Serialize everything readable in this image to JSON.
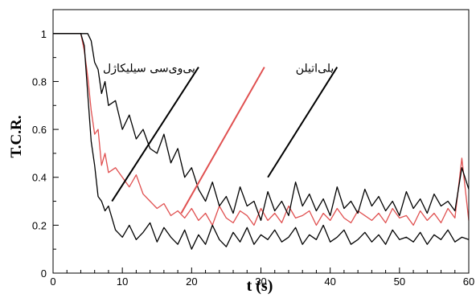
{
  "chart_data": {
    "type": "line",
    "xlabel": "t (s)",
    "ylabel": "T.C.R.",
    "xlim": [
      0,
      60
    ],
    "ylim": [
      0,
      1.1
    ],
    "x_ticks": [
      0,
      10,
      20,
      30,
      40,
      50,
      60
    ],
    "y_ticks": [
      0,
      0.2,
      0.4,
      0.6,
      0.8,
      1
    ],
    "y_tick_labels": [
      "0",
      "0.2",
      "0.4",
      "0.6",
      "0.8",
      "1"
    ],
    "grid": false,
    "annotations": [
      {
        "text": "پی‌وی‌سی سیلیکاژل",
        "color": "#000000",
        "line_start": [
          8.5,
          0.3
        ],
        "line_end": [
          21,
          0.86
        ]
      },
      {
        "text": "",
        "color": "#e05050",
        "line_start": [
          18.5,
          0.25
        ],
        "line_end": [
          30.5,
          0.86
        ]
      },
      {
        "text": "پلی‌اتیلن",
        "color": "#000000",
        "line_start": [
          31,
          0.4
        ],
        "line_end": [
          41,
          0.86
        ]
      }
    ],
    "series": [
      {
        "color": "#000000",
        "x": [
          0,
          1,
          2,
          3,
          4,
          4.5,
          5,
          5.5,
          6,
          6.5,
          7,
          7.5,
          8,
          9,
          10,
          11,
          12,
          13,
          14,
          15,
          16,
          17,
          18,
          19,
          20,
          21,
          22,
          23,
          24,
          25,
          26,
          27,
          28,
          29,
          30,
          31,
          32,
          33,
          34,
          35,
          36,
          37,
          38,
          39,
          40,
          41,
          42,
          43,
          44,
          45,
          46,
          47,
          48,
          49,
          50,
          51,
          52,
          53,
          54,
          55,
          56,
          57,
          58,
          59,
          60
        ],
        "values": [
          1,
          1,
          1,
          1,
          1,
          0.95,
          0.75,
          0.55,
          0.45,
          0.32,
          0.3,
          0.26,
          0.28,
          0.18,
          0.15,
          0.2,
          0.14,
          0.17,
          0.21,
          0.13,
          0.19,
          0.15,
          0.12,
          0.18,
          0.1,
          0.16,
          0.12,
          0.2,
          0.14,
          0.11,
          0.17,
          0.13,
          0.19,
          0.12,
          0.16,
          0.14,
          0.18,
          0.13,
          0.15,
          0.19,
          0.12,
          0.16,
          0.14,
          0.2,
          0.13,
          0.15,
          0.18,
          0.12,
          0.14,
          0.17,
          0.13,
          0.16,
          0.12,
          0.18,
          0.14,
          0.15,
          0.13,
          0.17,
          0.12,
          0.16,
          0.14,
          0.18,
          0.13,
          0.15,
          0.14
        ]
      },
      {
        "color": "#e05050",
        "x": [
          0,
          1,
          2,
          3,
          4,
          4.5,
          5,
          5.5,
          6,
          6.5,
          7,
          7.5,
          8,
          9,
          10,
          11,
          12,
          13,
          14,
          15,
          16,
          17,
          18,
          19,
          20,
          21,
          22,
          23,
          24,
          25,
          26,
          27,
          28,
          29,
          30,
          31,
          32,
          33,
          34,
          35,
          36,
          37,
          38,
          39,
          40,
          41,
          42,
          43,
          44,
          45,
          46,
          47,
          48,
          49,
          50,
          51,
          52,
          53,
          54,
          55,
          56,
          57,
          58,
          59,
          60
        ],
        "values": [
          1,
          1,
          1,
          1,
          1,
          0.93,
          0.82,
          0.68,
          0.58,
          0.6,
          0.45,
          0.5,
          0.42,
          0.44,
          0.4,
          0.36,
          0.41,
          0.33,
          0.3,
          0.27,
          0.29,
          0.24,
          0.26,
          0.23,
          0.27,
          0.22,
          0.25,
          0.2,
          0.28,
          0.23,
          0.21,
          0.26,
          0.24,
          0.2,
          0.27,
          0.22,
          0.25,
          0.21,
          0.28,
          0.23,
          0.24,
          0.26,
          0.2,
          0.25,
          0.22,
          0.27,
          0.23,
          0.21,
          0.26,
          0.24,
          0.22,
          0.25,
          0.21,
          0.27,
          0.23,
          0.24,
          0.2,
          0.26,
          0.22,
          0.25,
          0.21,
          0.27,
          0.23,
          0.48,
          0.22
        ]
      },
      {
        "color": "#000000",
        "x": [
          0,
          1,
          2,
          3,
          4,
          4.5,
          5,
          5.5,
          6,
          6.5,
          7,
          7.5,
          8,
          9,
          10,
          11,
          12,
          13,
          14,
          15,
          16,
          17,
          18,
          19,
          20,
          21,
          22,
          23,
          24,
          25,
          26,
          27,
          28,
          29,
          30,
          31,
          32,
          33,
          34,
          35,
          36,
          37,
          38,
          39,
          40,
          41,
          42,
          43,
          44,
          45,
          46,
          47,
          48,
          49,
          50,
          51,
          52,
          53,
          54,
          55,
          56,
          57,
          58,
          59,
          60
        ],
        "values": [
          1,
          1,
          1,
          1,
          1,
          1,
          1,
          0.97,
          0.88,
          0.85,
          0.75,
          0.8,
          0.7,
          0.72,
          0.6,
          0.66,
          0.56,
          0.6,
          0.52,
          0.5,
          0.58,
          0.46,
          0.52,
          0.4,
          0.44,
          0.35,
          0.3,
          0.38,
          0.28,
          0.32,
          0.25,
          0.36,
          0.28,
          0.3,
          0.22,
          0.34,
          0.26,
          0.3,
          0.24,
          0.38,
          0.28,
          0.33,
          0.26,
          0.31,
          0.24,
          0.36,
          0.27,
          0.3,
          0.25,
          0.35,
          0.28,
          0.32,
          0.26,
          0.3,
          0.24,
          0.34,
          0.27,
          0.31,
          0.25,
          0.33,
          0.28,
          0.3,
          0.26,
          0.44,
          0.35
        ]
      }
    ]
  }
}
